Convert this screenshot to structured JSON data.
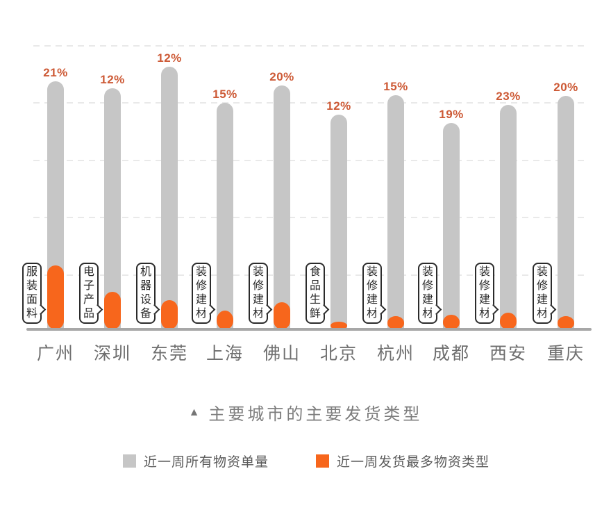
{
  "chart_data": {
    "type": "bar",
    "title": "主要城市的主要发货类型",
    "title_marker": "▲",
    "xlabel": "",
    "ylabel": "",
    "axis_values_shown": false,
    "grid": "horizontal-dashed",
    "legend_position": "bottom",
    "colors": {
      "volume_bar": "#c6c6c6",
      "top_category_bar": "#f7661c",
      "percent_label": "#cd5a36",
      "axis_line": "#a7a7a7",
      "gridline": "#e9e9e9"
    },
    "legend": [
      {
        "label": "近一周所有物资单量",
        "color": "#c6c6c6"
      },
      {
        "label": "近一周发货最多物资类型",
        "color": "#f7661c"
      }
    ],
    "categories": [
      "广州",
      "深圳",
      "东莞",
      "上海",
      "佛山",
      "北京",
      "杭州",
      "成都",
      "西安",
      "重庆"
    ],
    "bars": [
      {
        "city": "广州",
        "category": "服装面料",
        "percent": "21%",
        "volume_h": 357,
        "category_h": 92
      },
      {
        "city": "深圳",
        "category": "电子产品",
        "percent": "12%",
        "volume_h": 347,
        "category_h": 54
      },
      {
        "city": "东莞",
        "category": "机器设备",
        "percent": "12%",
        "volume_h": 378,
        "category_h": 42
      },
      {
        "city": "上海",
        "category": "装修建材",
        "percent": "15%",
        "volume_h": 326,
        "category_h": 27
      },
      {
        "city": "佛山",
        "category": "装修建材",
        "percent": "20%",
        "volume_h": 351,
        "category_h": 39
      },
      {
        "city": "北京",
        "category": "食品生鲜",
        "percent": "12%",
        "volume_h": 309,
        "category_h": 11
      },
      {
        "city": "杭州",
        "category": "装修建材",
        "percent": "15%",
        "volume_h": 337,
        "category_h": 19
      },
      {
        "city": "成都",
        "category": "装修建材",
        "percent": "19%",
        "volume_h": 297,
        "category_h": 21
      },
      {
        "city": "西安",
        "category": "装修建材",
        "percent": "23%",
        "volume_h": 323,
        "category_h": 24
      },
      {
        "city": "重庆",
        "category": "装修建材",
        "percent": "20%",
        "volume_h": 336,
        "category_h": 19
      }
    ]
  }
}
